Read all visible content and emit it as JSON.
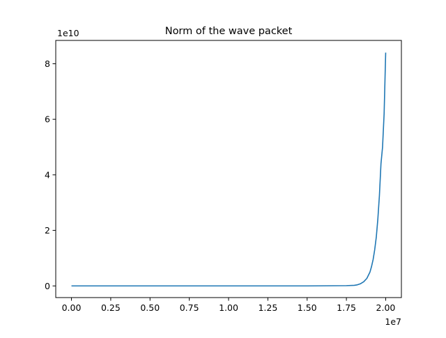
{
  "chart_data": {
    "type": "line",
    "title": "Norm of the wave packet",
    "xlabel": "",
    "ylabel": "",
    "x_offset_label": "1e7",
    "y_offset_label": "1e10",
    "xlim": [
      -0.1,
      2.1
    ],
    "ylim": [
      -0.42,
      8.84
    ],
    "x_ticks": [
      0,
      0.25,
      0.5,
      0.75,
      1.0,
      1.25,
      1.5,
      1.75,
      2.0
    ],
    "x_tick_labels": [
      "0.00",
      "0.25",
      "0.50",
      "0.75",
      "1.00",
      "1.25",
      "1.50",
      "1.75",
      "2.00"
    ],
    "y_ticks": [
      0,
      2,
      4,
      6,
      8
    ],
    "y_tick_labels": [
      "0",
      "2",
      "4",
      "6",
      "8"
    ],
    "grid": false,
    "legend": "none",
    "series": [
      {
        "color": "#1f77b4",
        "x": [
          0.0,
          0.25,
          0.5,
          0.75,
          1.0,
          1.25,
          1.5,
          1.75,
          1.8,
          1.82,
          1.84,
          1.86,
          1.88,
          1.9,
          1.91,
          1.92,
          1.93,
          1.94,
          1.95,
          1.96,
          1.97,
          1.98,
          1.99,
          2.0
        ],
        "y": [
          0.0,
          0.0,
          0.0,
          0.0,
          0.0,
          0.0,
          0.0,
          0.01,
          0.02,
          0.04,
          0.08,
          0.15,
          0.27,
          0.5,
          0.7,
          0.95,
          1.3,
          1.75,
          2.4,
          3.25,
          4.4,
          5.0,
          6.2,
          8.4
        ]
      }
    ]
  }
}
